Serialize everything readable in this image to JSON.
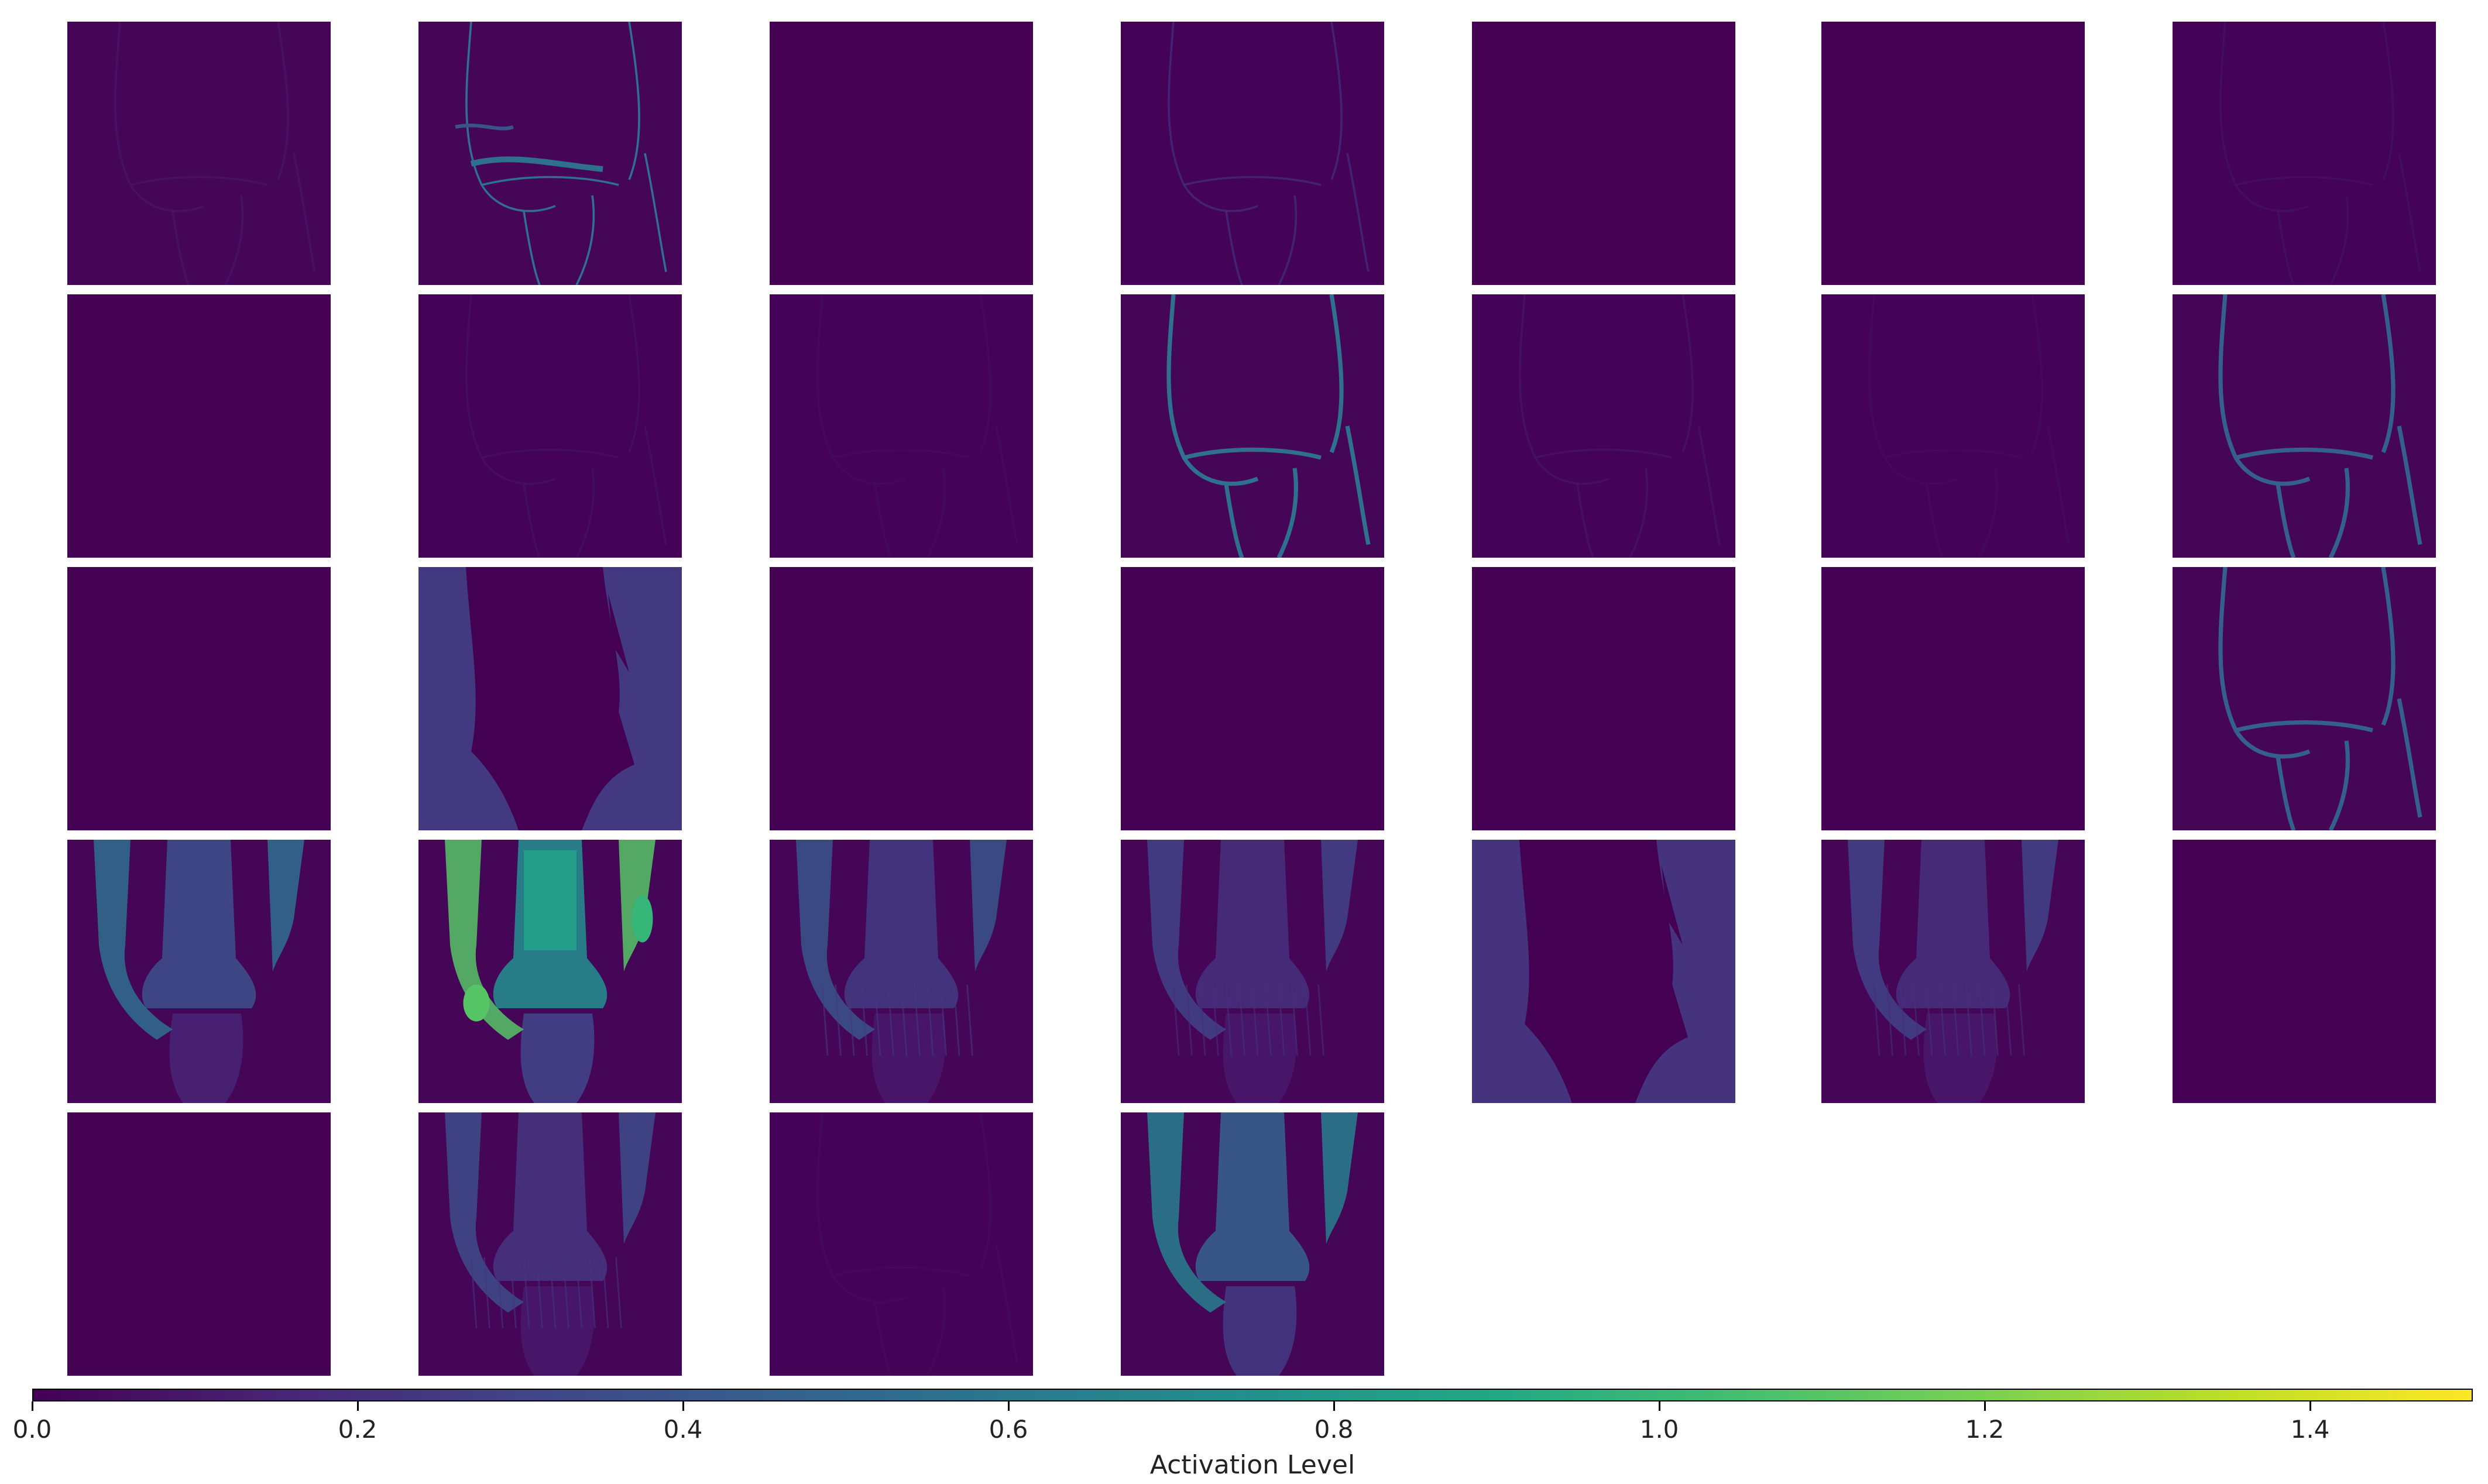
{
  "chart_data": {
    "type": "heatmap",
    "colormap": "viridis",
    "grid": {
      "rows": 5,
      "cols": 7
    },
    "panels": [
      {
        "row": 0,
        "col": 0,
        "mean_activation": 0.02,
        "max_activation": 0.1,
        "pattern": "faint-knee"
      },
      {
        "row": 0,
        "col": 1,
        "mean_activation": 0.04,
        "max_activation": 0.55,
        "pattern": "edge-streaks"
      },
      {
        "row": 0,
        "col": 2,
        "mean_activation": 0.0,
        "max_activation": 0.0,
        "pattern": "blank"
      },
      {
        "row": 0,
        "col": 3,
        "mean_activation": 0.01,
        "max_activation": 0.25,
        "pattern": "faint-edges"
      },
      {
        "row": 0,
        "col": 4,
        "mean_activation": 0.0,
        "max_activation": 0.0,
        "pattern": "blank"
      },
      {
        "row": 0,
        "col": 5,
        "mean_activation": 0.0,
        "max_activation": 0.0,
        "pattern": "blank"
      },
      {
        "row": 0,
        "col": 6,
        "mean_activation": 0.01,
        "max_activation": 0.08,
        "pattern": "faint-edges"
      },
      {
        "row": 1,
        "col": 0,
        "mean_activation": 0.0,
        "max_activation": 0.0,
        "pattern": "blank"
      },
      {
        "row": 1,
        "col": 1,
        "mean_activation": 0.01,
        "max_activation": 0.08,
        "pattern": "faint-edges"
      },
      {
        "row": 1,
        "col": 2,
        "mean_activation": 0.01,
        "max_activation": 0.05,
        "pattern": "faint-edges"
      },
      {
        "row": 1,
        "col": 3,
        "mean_activation": 0.06,
        "max_activation": 0.55,
        "pattern": "knee-outline"
      },
      {
        "row": 1,
        "col": 4,
        "mean_activation": 0.01,
        "max_activation": 0.1,
        "pattern": "faint-edges"
      },
      {
        "row": 1,
        "col": 5,
        "mean_activation": 0.01,
        "max_activation": 0.05,
        "pattern": "faint-edges"
      },
      {
        "row": 1,
        "col": 6,
        "mean_activation": 0.08,
        "max_activation": 0.45,
        "pattern": "knee-outline"
      },
      {
        "row": 2,
        "col": 0,
        "mean_activation": 0.0,
        "max_activation": 0.0,
        "pattern": "blank"
      },
      {
        "row": 2,
        "col": 1,
        "mean_activation": 0.2,
        "max_activation": 0.25,
        "pattern": "inverse-knee"
      },
      {
        "row": 2,
        "col": 2,
        "mean_activation": 0.0,
        "max_activation": 0.0,
        "pattern": "blank"
      },
      {
        "row": 2,
        "col": 3,
        "mean_activation": 0.0,
        "max_activation": 0.0,
        "pattern": "blank"
      },
      {
        "row": 2,
        "col": 4,
        "mean_activation": 0.0,
        "max_activation": 0.0,
        "pattern": "blank"
      },
      {
        "row": 2,
        "col": 5,
        "mean_activation": 0.0,
        "max_activation": 0.0,
        "pattern": "blank"
      },
      {
        "row": 2,
        "col": 6,
        "mean_activation": 0.08,
        "max_activation": 0.45,
        "pattern": "knee-outline"
      },
      {
        "row": 3,
        "col": 0,
        "mean_activation": 0.15,
        "max_activation": 0.55,
        "pattern": "knee-filled"
      },
      {
        "row": 3,
        "col": 1,
        "mean_activation": 0.3,
        "max_activation": 1.1,
        "pattern": "knee-bright"
      },
      {
        "row": 3,
        "col": 2,
        "mean_activation": 0.1,
        "max_activation": 0.4,
        "pattern": "knee-textured"
      },
      {
        "row": 3,
        "col": 3,
        "mean_activation": 0.1,
        "max_activation": 0.3,
        "pattern": "knee-textured"
      },
      {
        "row": 3,
        "col": 4,
        "mean_activation": 0.12,
        "max_activation": 0.22,
        "pattern": "inverse-knee"
      },
      {
        "row": 3,
        "col": 5,
        "mean_activation": 0.1,
        "max_activation": 0.3,
        "pattern": "knee-textured"
      },
      {
        "row": 3,
        "col": 6,
        "mean_activation": 0.0,
        "max_activation": 0.0,
        "pattern": "blank"
      },
      {
        "row": 4,
        "col": 0,
        "mean_activation": 0.0,
        "max_activation": 0.0,
        "pattern": "blank"
      },
      {
        "row": 4,
        "col": 1,
        "mean_activation": 0.1,
        "max_activation": 0.35,
        "pattern": "knee-textured"
      },
      {
        "row": 4,
        "col": 2,
        "mean_activation": 0.01,
        "max_activation": 0.05,
        "pattern": "faint-edges"
      },
      {
        "row": 4,
        "col": 3,
        "mean_activation": 0.25,
        "max_activation": 0.65,
        "pattern": "knee-filled"
      }
    ],
    "colorbar": {
      "label": "Activation Level",
      "min": 0.0,
      "max": 1.5,
      "orientation": "horizontal",
      "placement": "bottom",
      "ticks": [
        {
          "value": 0.0,
          "label": "0.0"
        },
        {
          "value": 0.2,
          "label": "0.2"
        },
        {
          "value": 0.4,
          "label": "0.4"
        },
        {
          "value": 0.6,
          "label": "0.6"
        },
        {
          "value": 0.8,
          "label": "0.8"
        },
        {
          "value": 1.0,
          "label": "1.0"
        },
        {
          "value": 1.2,
          "label": "1.2"
        },
        {
          "value": 1.4,
          "label": "1.4"
        }
      ]
    },
    "title": "",
    "xlabel": "",
    "ylabel": "",
    "grid_lines": false,
    "axes_visible": false
  }
}
